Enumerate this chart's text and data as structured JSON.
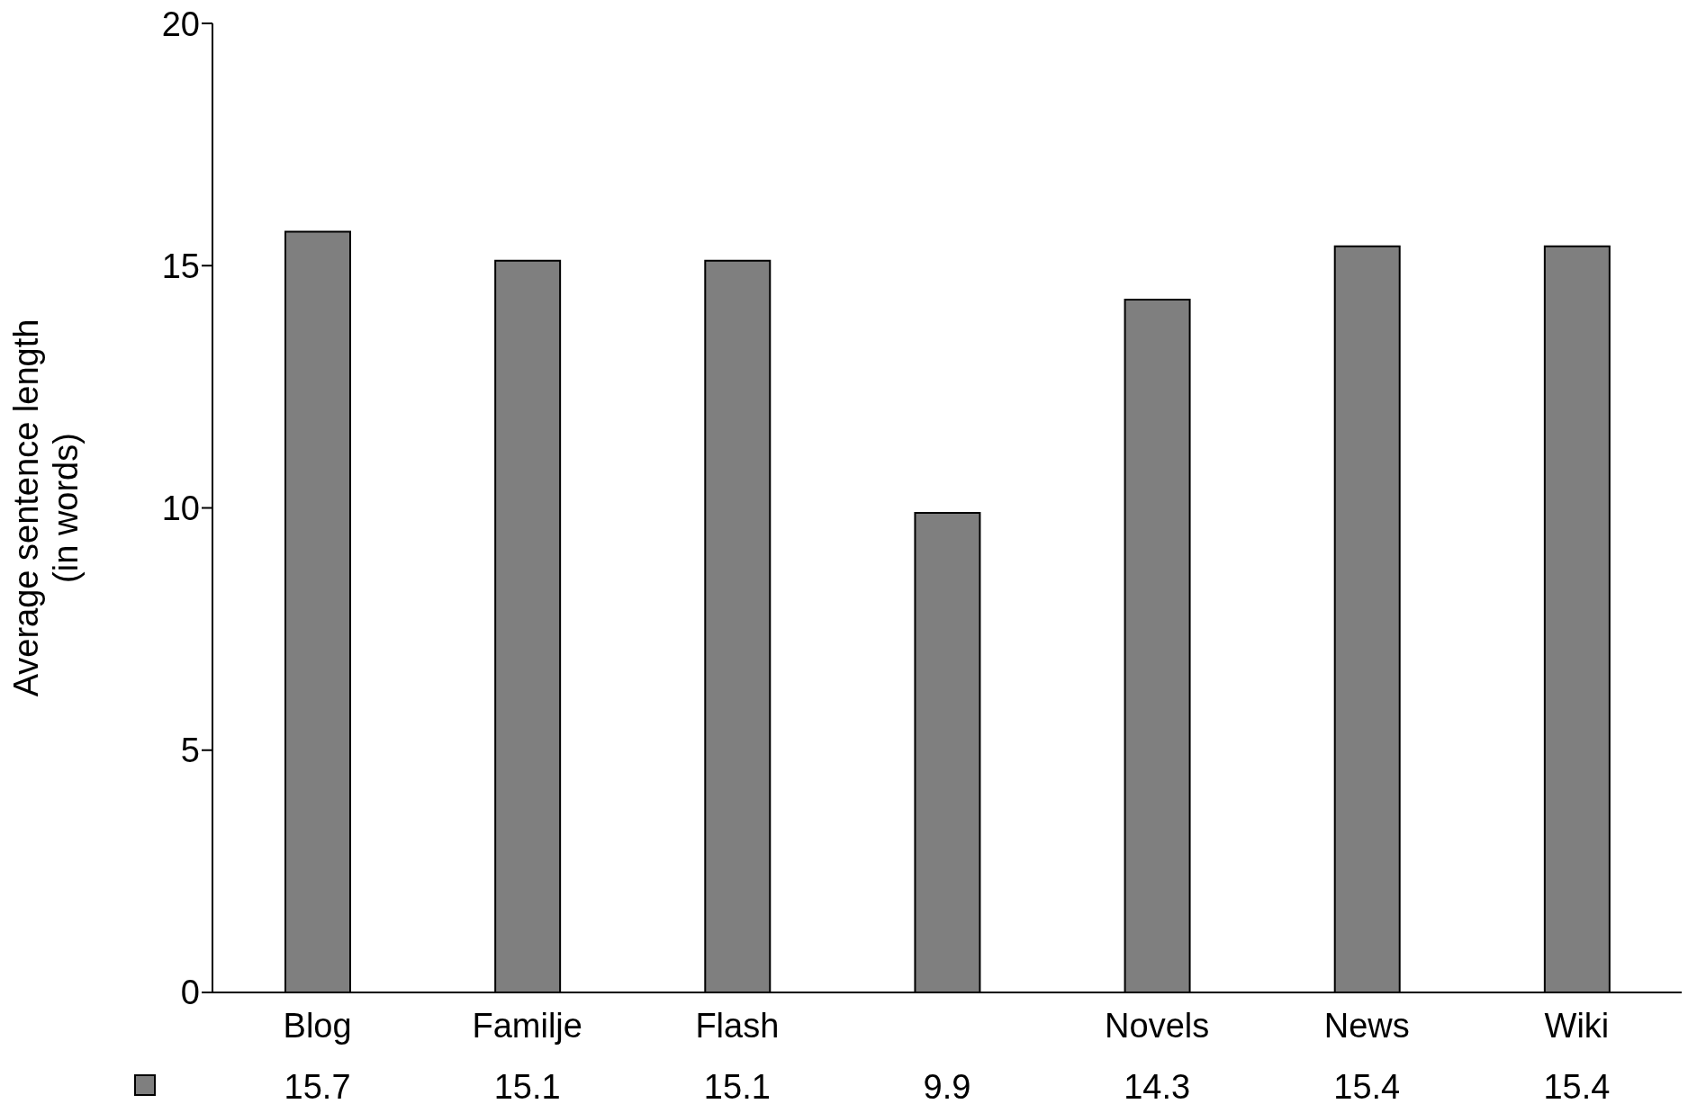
{
  "chart_data": {
    "type": "bar",
    "ylabel": "Average sentence length\n(in words)",
    "categories": [
      "Blog",
      "Familje",
      "Flash",
      null,
      "Novels",
      "News",
      "Wiki"
    ],
    "values": [
      15.7,
      15.1,
      15.1,
      9.9,
      14.3,
      15.4,
      15.4
    ],
    "color": "#7f7f7f",
    "ylim": [
      0,
      20
    ],
    "yticks": [
      0,
      5,
      10,
      15,
      20
    ],
    "data_labels": true
  }
}
